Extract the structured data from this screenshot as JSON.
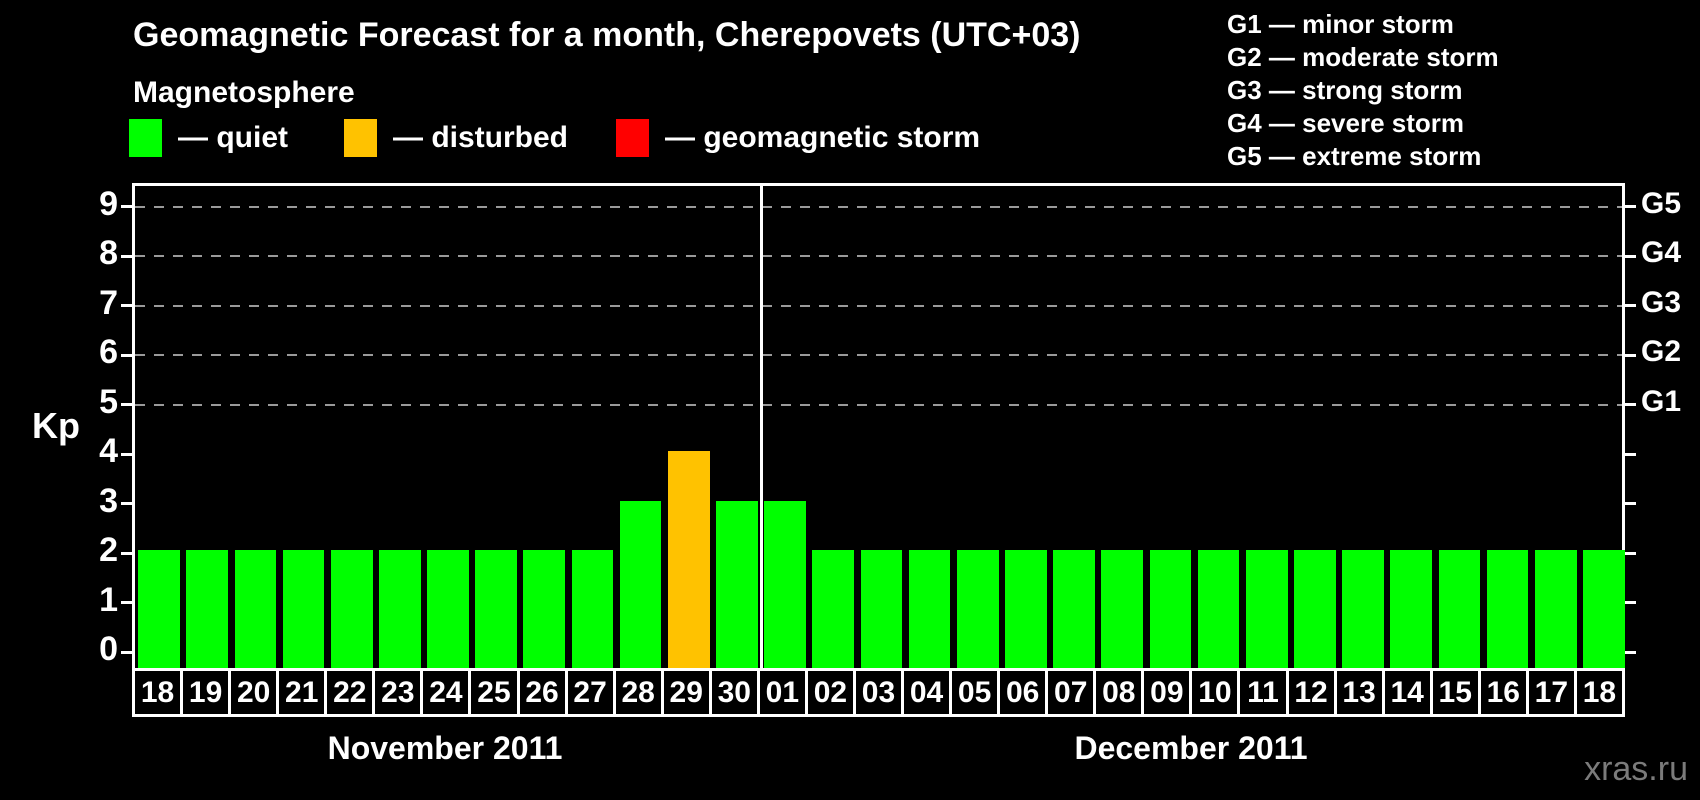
{
  "title": "Geomagnetic Forecast for a month, Cherepovets (UTC+03)",
  "subtitle": "Magnetosphere",
  "legend": {
    "items": [
      {
        "key": "quiet",
        "label": "— quiet",
        "color": "#00ff00"
      },
      {
        "key": "disturbed",
        "label": "— disturbed",
        "color": "#ffc200"
      },
      {
        "key": "storm",
        "label": "— geomagnetic storm",
        "color": "#ff0000"
      }
    ]
  },
  "g_scale_legend": [
    "G1 — minor storm",
    "G2 — moderate storm",
    "G3 — strong storm",
    "G4 — severe storm",
    "G5 — extreme storm"
  ],
  "watermark": "xras.ru",
  "chart_data": {
    "type": "bar",
    "title": "Geomagnetic Forecast for a month, Cherepovets (UTC+03)",
    "ylabel": "Kp",
    "ylim": [
      0,
      9
    ],
    "y_ticks": [
      0,
      1,
      2,
      3,
      4,
      5,
      6,
      7,
      8,
      9
    ],
    "gridlines_at": [
      5,
      6,
      7,
      8,
      9
    ],
    "grid": "dashed, only at storm levels G1-G5",
    "legend_position": "top",
    "right_axis": [
      {
        "level": 5,
        "label": "G1"
      },
      {
        "level": 6,
        "label": "G2"
      },
      {
        "level": 7,
        "label": "G3"
      },
      {
        "level": 8,
        "label": "G4"
      },
      {
        "level": 9,
        "label": "G5"
      }
    ],
    "state_colors": {
      "quiet": "#00ff00",
      "disturbed": "#ffc200",
      "storm": "#ff0000"
    },
    "groups": [
      {
        "label": "November 2011",
        "bars": [
          {
            "day": "18",
            "kp": 2,
            "state": "quiet"
          },
          {
            "day": "19",
            "kp": 2,
            "state": "quiet"
          },
          {
            "day": "20",
            "kp": 2,
            "state": "quiet"
          },
          {
            "day": "21",
            "kp": 2,
            "state": "quiet"
          },
          {
            "day": "22",
            "kp": 2,
            "state": "quiet"
          },
          {
            "day": "23",
            "kp": 2,
            "state": "quiet"
          },
          {
            "day": "24",
            "kp": 2,
            "state": "quiet"
          },
          {
            "day": "25",
            "kp": 2,
            "state": "quiet"
          },
          {
            "day": "26",
            "kp": 2,
            "state": "quiet"
          },
          {
            "day": "27",
            "kp": 2,
            "state": "quiet"
          },
          {
            "day": "28",
            "kp": 3,
            "state": "quiet"
          },
          {
            "day": "29",
            "kp": 4,
            "state": "disturbed"
          },
          {
            "day": "30",
            "kp": 3,
            "state": "quiet"
          }
        ]
      },
      {
        "label": "December 2011",
        "bars": [
          {
            "day": "01",
            "kp": 3,
            "state": "quiet"
          },
          {
            "day": "02",
            "kp": 2,
            "state": "quiet"
          },
          {
            "day": "03",
            "kp": 2,
            "state": "quiet"
          },
          {
            "day": "04",
            "kp": 2,
            "state": "quiet"
          },
          {
            "day": "05",
            "kp": 2,
            "state": "quiet"
          },
          {
            "day": "06",
            "kp": 2,
            "state": "quiet"
          },
          {
            "day": "07",
            "kp": 2,
            "state": "quiet"
          },
          {
            "day": "08",
            "kp": 2,
            "state": "quiet"
          },
          {
            "day": "09",
            "kp": 2,
            "state": "quiet"
          },
          {
            "day": "10",
            "kp": 2,
            "state": "quiet"
          },
          {
            "day": "11",
            "kp": 2,
            "state": "quiet"
          },
          {
            "day": "12",
            "kp": 2,
            "state": "quiet"
          },
          {
            "day": "13",
            "kp": 2,
            "state": "quiet"
          },
          {
            "day": "14",
            "kp": 2,
            "state": "quiet"
          },
          {
            "day": "15",
            "kp": 2,
            "state": "quiet"
          },
          {
            "day": "16",
            "kp": 2,
            "state": "quiet"
          },
          {
            "day": "17",
            "kp": 2,
            "state": "quiet"
          },
          {
            "day": "18",
            "kp": 2,
            "state": "quiet"
          }
        ]
      }
    ]
  }
}
